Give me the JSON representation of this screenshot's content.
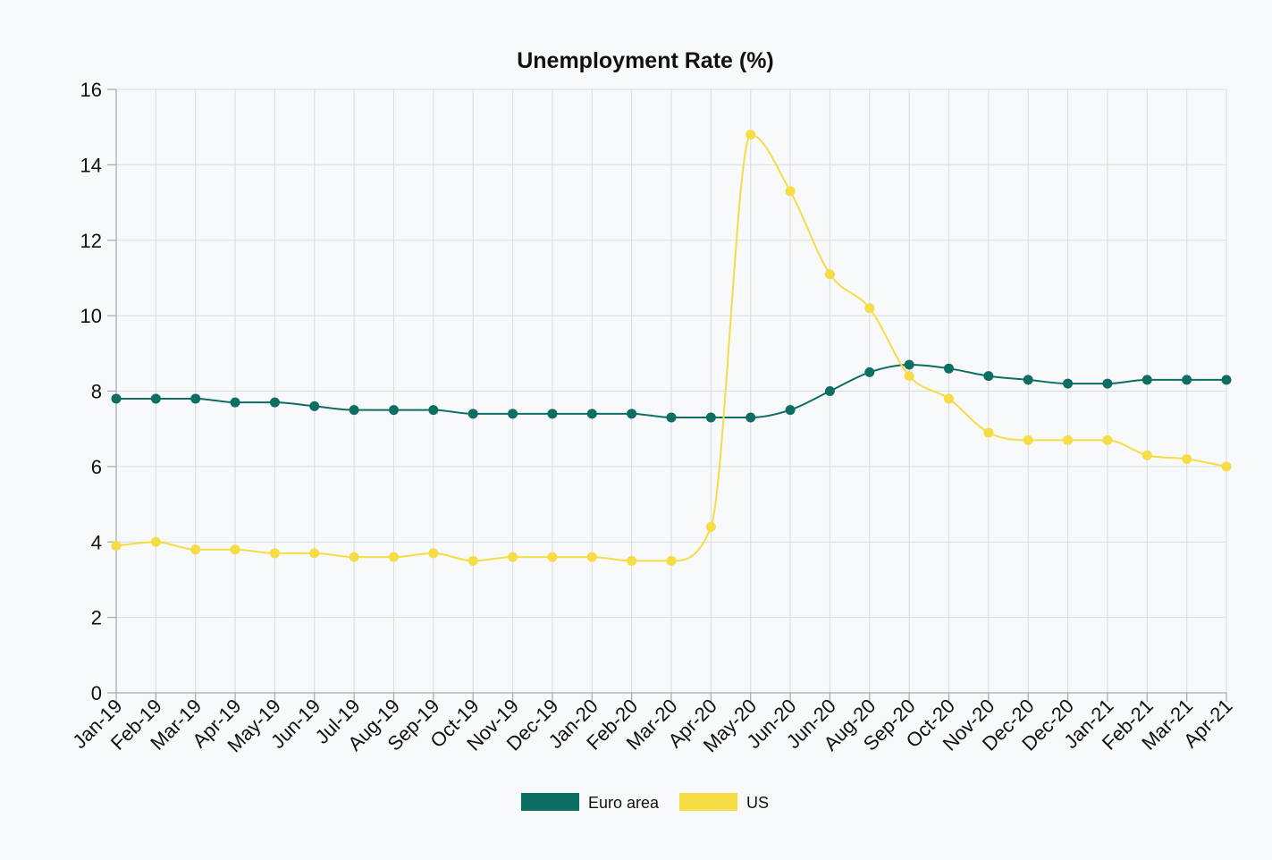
{
  "chart_data": {
    "type": "line",
    "title": "Unemployment Rate (%)",
    "xlabel": "",
    "ylabel": "",
    "ylim": [
      0,
      16
    ],
    "y_ticks": [
      0,
      2,
      4,
      6,
      8,
      10,
      12,
      14,
      16
    ],
    "grid": true,
    "legend_position": "bottom-center",
    "categories": [
      "Jan-19",
      "Feb-19",
      "Mar-19",
      "Apr-19",
      "May-19",
      "Jun-19",
      "Jul-19",
      "Aug-19",
      "Sep-19",
      "Oct-19",
      "Nov-19",
      "Dec-19",
      "Jan-20",
      "Feb-20",
      "Mar-20",
      "Apr-20",
      "May-20",
      "Jun-20",
      "Jun-20",
      "Aug-20",
      "Sep-20",
      "Oct-20",
      "Nov-20",
      "Dec-20",
      "Dec-20",
      "Jan-21",
      "Feb-21",
      "Mar-21",
      "Apr-21"
    ],
    "series": [
      {
        "name": "Euro area",
        "color": "#0d6e63",
        "values": [
          7.8,
          7.8,
          7.8,
          7.7,
          7.7,
          7.6,
          7.5,
          7.5,
          7.5,
          7.4,
          7.4,
          7.4,
          7.4,
          7.4,
          7.3,
          7.3,
          7.3,
          7.5,
          8.0,
          8.5,
          8.7,
          8.6,
          8.4,
          8.3,
          8.2,
          8.2,
          8.3,
          8.3,
          8.3
        ]
      },
      {
        "name": "US",
        "color": "#f6dc45",
        "values": [
          3.9,
          4.0,
          3.8,
          3.8,
          3.7,
          3.7,
          3.6,
          3.6,
          3.7,
          3.5,
          3.6,
          3.6,
          3.6,
          3.5,
          3.5,
          4.4,
          14.8,
          13.3,
          11.1,
          10.2,
          8.4,
          7.8,
          6.9,
          6.7,
          6.7,
          6.7,
          6.3,
          6.2,
          6.0
        ]
      }
    ]
  }
}
